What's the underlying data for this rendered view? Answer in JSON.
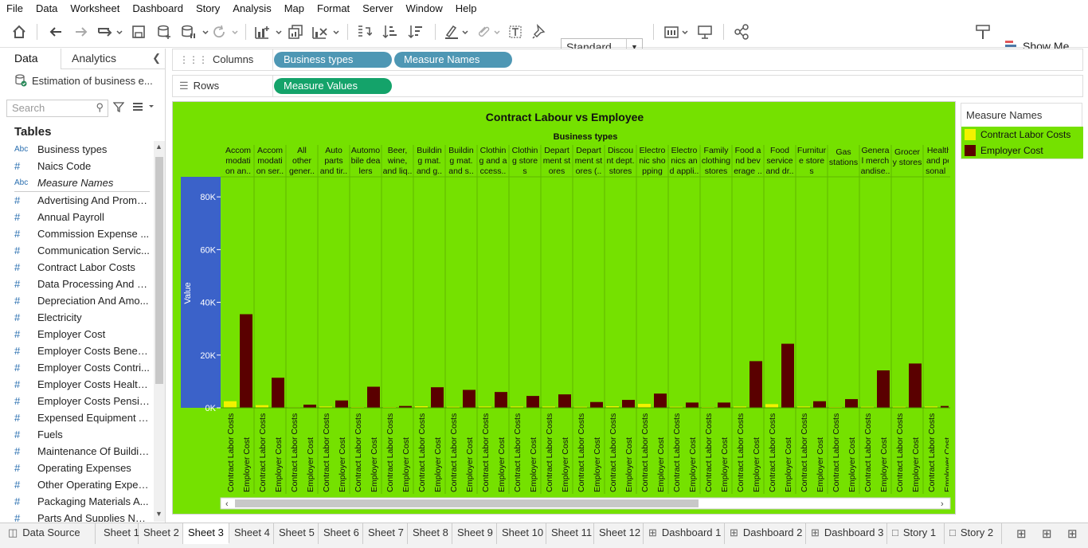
{
  "menu": [
    "File",
    "Data",
    "Worksheet",
    "Dashboard",
    "Story",
    "Analysis",
    "Map",
    "Format",
    "Server",
    "Window",
    "Help"
  ],
  "toolbar": {
    "fit": "Standard",
    "show_me": "Show Me"
  },
  "left_pane": {
    "tabs": [
      "Data",
      "Analytics"
    ],
    "datasource": "Estimation of business e...",
    "search_placeholder": "Search",
    "tables_heading": "Tables",
    "fields": [
      {
        "type": "Abc",
        "name": "Business types"
      },
      {
        "type": "#",
        "name": "Naics Code"
      },
      {
        "type": "Abc",
        "name": "Measure Names"
      },
      {
        "type": "#",
        "name": "Advertising And Promo..."
      },
      {
        "type": "#",
        "name": "Annual Payroll"
      },
      {
        "type": "#",
        "name": "Commission Expense ..."
      },
      {
        "type": "#",
        "name": "Communication Servic..."
      },
      {
        "type": "#",
        "name": "Contract Labor Costs"
      },
      {
        "type": "#",
        "name": "Data Processing And C..."
      },
      {
        "type": "#",
        "name": "Depreciation And Amo..."
      },
      {
        "type": "#",
        "name": "Electricity"
      },
      {
        "type": "#",
        "name": "Employer Cost"
      },
      {
        "type": "#",
        "name": "Employer Costs Benefits"
      },
      {
        "type": "#",
        "name": "Employer Costs Contri..."
      },
      {
        "type": "#",
        "name": "Employer Costs Health..."
      },
      {
        "type": "#",
        "name": "Employer Costs Pensio..."
      },
      {
        "type": "#",
        "name": "Expensed Equipment A..."
      },
      {
        "type": "#",
        "name": "Fuels"
      },
      {
        "type": "#",
        "name": "Maintenance Of Buildin..."
      },
      {
        "type": "#",
        "name": "Operating Expenses"
      },
      {
        "type": "#",
        "name": "Other Operating Expen..."
      },
      {
        "type": "#",
        "name": "Packaging Materials A..."
      },
      {
        "type": "#",
        "name": "Parts And Supplies Not..."
      }
    ]
  },
  "shelves": {
    "columns_label": "Columns",
    "rows_label": "Rows",
    "columns": [
      "Business types",
      "Measure Names"
    ],
    "rows": [
      "Measure Values"
    ]
  },
  "legend": {
    "title": "Measure Names",
    "items": [
      {
        "name": "Contract Labor Costs",
        "color": "#f2f200"
      },
      {
        "name": "Employer Cost",
        "color": "#5a0000"
      }
    ]
  },
  "chart_data": {
    "type": "bar",
    "title": "Contract Labour vs Employee",
    "header_label": "Business types",
    "ylabel": "Value",
    "ylim": [
      0,
      87000
    ],
    "yticks": [
      "0K",
      "20K",
      "40K",
      "60K",
      "80K"
    ],
    "ytick_values": [
      0,
      20000,
      40000,
      60000,
      80000
    ],
    "measure_labels": [
      "Contract Labor Costs",
      "Employer Cost"
    ],
    "categories": [
      [
        "Accom",
        "modati",
        "on an.."
      ],
      [
        "Accom",
        "modati",
        "on ser.."
      ],
      [
        "All",
        "other",
        "gener.."
      ],
      [
        "Auto",
        "parts",
        "and tir.."
      ],
      [
        "Automo",
        "bile dea",
        "lers"
      ],
      [
        "Beer,",
        "wine,",
        "and liq.."
      ],
      [
        "Buildin",
        "g mat.",
        "and g.."
      ],
      [
        "Buildin",
        "g mat.",
        "and s.."
      ],
      [
        "Clothin",
        "g and a",
        "ccess.."
      ],
      [
        "Clothin",
        "g store",
        "s"
      ],
      [
        "Depart",
        "ment st",
        "ores"
      ],
      [
        "Depart",
        "ment st",
        "ores (.."
      ],
      [
        "Discou",
        "nt dept.",
        "stores"
      ],
      [
        "Electro",
        "nic sho",
        "pping"
      ],
      [
        "Electro",
        "nics an",
        "d appli.."
      ],
      [
        "Family",
        "clothing",
        "stores"
      ],
      [
        "Food a",
        "nd bev",
        "erage .."
      ],
      [
        "Food",
        "service",
        "and dr.."
      ],
      [
        "Furnitur",
        "e store",
        "s"
      ],
      [
        "Gas",
        "stations"
      ],
      [
        "Genera",
        "l merch",
        "andise.."
      ],
      [
        "Grocer",
        "y stores"
      ],
      [
        "Health",
        "and pe",
        "sonal .."
      ]
    ],
    "series": [
      {
        "name": "Contract Labor Costs",
        "color": "#f2f200",
        "values": [
          2500,
          1000,
          200,
          500,
          300,
          300,
          600,
          400,
          500,
          500,
          500,
          400,
          600,
          1500,
          400,
          300,
          500,
          1400,
          500,
          300,
          400,
          400,
          500
        ]
      },
      {
        "name": "Employer Cost",
        "color": "#5a0000",
        "values": [
          35500,
          11400,
          1200,
          2800,
          8000,
          700,
          7800,
          6800,
          6000,
          4500,
          5100,
          2200,
          3000,
          5400,
          2000,
          2000,
          17700,
          24300,
          2500,
          3300,
          14200,
          16800,
          700
        ]
      }
    ]
  },
  "sheet_tabs": [
    "Data Source",
    "Sheet 1",
    "Sheet 2",
    "Sheet 3",
    "Sheet 4",
    "Sheet 5",
    "Sheet 6",
    "Sheet 7",
    "Sheet 8",
    "Sheet 9",
    "Sheet 10",
    "Sheet 11",
    "Sheet 12",
    "Dashboard 1",
    "Dashboard 2",
    "Dashboard 3",
    "Story 1",
    "Story 2"
  ],
  "active_sheet": "Sheet 3"
}
